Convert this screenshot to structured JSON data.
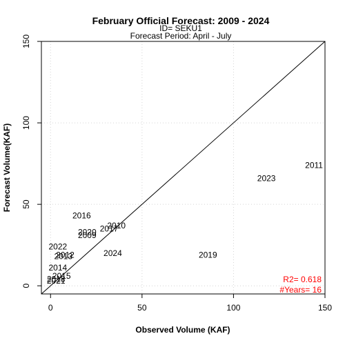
{
  "chart_data": {
    "type": "scatter",
    "title": "February Official Forecast: 2009 - 2024",
    "subtitle_id": "ID= SEKU1",
    "subtitle_period": "Forecast Period:  April - July",
    "xlabel": "Observed Volume (KAF)",
    "ylabel": "Forecast Volume(KAF)",
    "xlim": [
      -5,
      150
    ],
    "ylim": [
      -5,
      150
    ],
    "xticks": [
      0,
      50,
      100,
      150
    ],
    "yticks": [
      0,
      50,
      100,
      150
    ],
    "grid": true,
    "reference_line": "1:1",
    "points": [
      {
        "label": "2009",
        "x": 20,
        "y": 31
      },
      {
        "label": "2010",
        "x": 36,
        "y": 37
      },
      {
        "label": "2011",
        "x": 144,
        "y": 74
      },
      {
        "label": "2012",
        "x": 8,
        "y": 19
      },
      {
        "label": "2013",
        "x": 7,
        "y": 18
      },
      {
        "label": "2014",
        "x": 4,
        "y": 11
      },
      {
        "label": "2015",
        "x": 6,
        "y": 6
      },
      {
        "label": "2016",
        "x": 17,
        "y": 43
      },
      {
        "label": "2017",
        "x": 32,
        "y": 35
      },
      {
        "label": "2018",
        "x": 3,
        "y": 4
      },
      {
        "label": "2019",
        "x": 86,
        "y": 19
      },
      {
        "label": "2020",
        "x": 20,
        "y": 33
      },
      {
        "label": "2021",
        "x": 3,
        "y": 3
      },
      {
        "label": "2022",
        "x": 4,
        "y": 24
      },
      {
        "label": "2023",
        "x": 118,
        "y": 66
      },
      {
        "label": "2024",
        "x": 34,
        "y": 20
      }
    ],
    "stats": {
      "r2": "R2=  0.618",
      "years": "#Years=  16"
    },
    "colors": {
      "stats": "#ff0000",
      "grid": "#d3d3d3",
      "axes": "#000000"
    }
  }
}
